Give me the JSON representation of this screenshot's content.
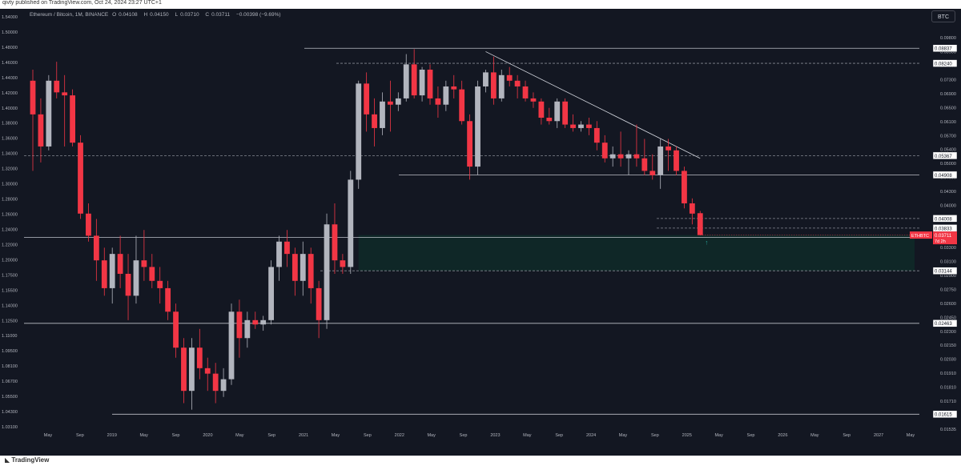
{
  "header": {
    "published": "qivty published on TradingView.com, Oct 24, 2024 23:27 UTC+1",
    "symbol": "Ethereum / Bitcoin, 1M, BINANCE",
    "open_label": "O",
    "open": "0.04108",
    "high_label": "H",
    "high": "0.04150",
    "low_label": "L",
    "low": "0.03710",
    "close_label": "C",
    "close": "0.03711",
    "change": "−0.00398 (−9.69%)",
    "currency_button": "BTC"
  },
  "footer": {
    "brand": "TradingView"
  },
  "colors": {
    "background": "#131722",
    "up": "#b2b5be",
    "down": "#f23645",
    "zone": "#0f2a28",
    "text": "#b2b5be"
  },
  "chart_data": {
    "type": "candlestick",
    "scale": "log",
    "ylim": [
      0.01535,
      0.1
    ],
    "y_ticks": [
      "0.09800",
      "0.08500",
      "0.07900",
      "0.07300",
      "0.06900",
      "0.06500",
      "0.06100",
      "0.05700",
      "0.05400",
      "0.05000",
      "0.04600",
      "0.04300",
      "0.04000",
      "0.03700",
      "0.03500",
      "0.03300",
      "0.03100",
      "0.02900",
      "0.02750",
      "0.02600",
      "0.02450",
      "0.02300",
      "0.02150",
      "0.02030",
      "0.01910",
      "0.01810",
      "0.01710",
      "0.01620",
      "0.01535"
    ],
    "x_ticks": [
      "May",
      "Sep",
      "2019",
      "May",
      "Sep",
      "2020",
      "May",
      "Sep",
      "2021",
      "May",
      "Sep",
      "2022",
      "May",
      "Sep",
      "2023",
      "May",
      "Sep",
      "2024",
      "May",
      "Sep",
      "2025",
      "May",
      "Sep",
      "2026",
      "May",
      "Sep",
      "2027",
      "May"
    ],
    "left_scale_ticks": [
      "1.54000",
      "1.50000",
      "1.48000",
      "1.46000",
      "1.44000",
      "1.42000",
      "1.40000",
      "1.38000",
      "1.36000",
      "1.34000",
      "1.32000",
      "1.30000",
      "1.28000",
      "1.26000",
      "1.24000",
      "1.22000",
      "1.20000",
      "1.17500",
      "1.15500",
      "1.14000",
      "1.12500",
      "1.11000",
      "1.09500",
      "1.08100",
      "1.06700",
      "1.05500",
      "1.04300",
      "1.03100"
    ],
    "candles": [
      {
        "o": 0.076,
        "h": 0.08,
        "l": 0.05,
        "c": 0.065
      },
      {
        "o": 0.065,
        "h": 0.07,
        "l": 0.052,
        "c": 0.056
      },
      {
        "o": 0.056,
        "h": 0.078,
        "l": 0.055,
        "c": 0.076
      },
      {
        "o": 0.076,
        "h": 0.083,
        "l": 0.07,
        "c": 0.072
      },
      {
        "o": 0.072,
        "h": 0.078,
        "l": 0.056,
        "c": 0.071
      },
      {
        "o": 0.071,
        "h": 0.073,
        "l": 0.056,
        "c": 0.057
      },
      {
        "o": 0.057,
        "h": 0.059,
        "l": 0.04,
        "c": 0.041
      },
      {
        "o": 0.041,
        "h": 0.043,
        "l": 0.036,
        "c": 0.037
      },
      {
        "o": 0.037,
        "h": 0.04,
        "l": 0.03,
        "c": 0.033
      },
      {
        "o": 0.033,
        "h": 0.035,
        "l": 0.028,
        "c": 0.029
      },
      {
        "o": 0.029,
        "h": 0.035,
        "l": 0.027,
        "c": 0.034
      },
      {
        "o": 0.034,
        "h": 0.037,
        "l": 0.029,
        "c": 0.031
      },
      {
        "o": 0.031,
        "h": 0.034,
        "l": 0.025,
        "c": 0.028
      },
      {
        "o": 0.028,
        "h": 0.037,
        "l": 0.027,
        "c": 0.033
      },
      {
        "o": 0.033,
        "h": 0.038,
        "l": 0.03,
        "c": 0.032
      },
      {
        "o": 0.032,
        "h": 0.034,
        "l": 0.029,
        "c": 0.03
      },
      {
        "o": 0.03,
        "h": 0.032,
        "l": 0.027,
        "c": 0.029
      },
      {
        "o": 0.029,
        "h": 0.03,
        "l": 0.025,
        "c": 0.026
      },
      {
        "o": 0.026,
        "h": 0.027,
        "l": 0.021,
        "c": 0.022
      },
      {
        "o": 0.022,
        "h": 0.023,
        "l": 0.017,
        "c": 0.018
      },
      {
        "o": 0.018,
        "h": 0.023,
        "l": 0.0165,
        "c": 0.022
      },
      {
        "o": 0.022,
        "h": 0.024,
        "l": 0.019,
        "c": 0.02
      },
      {
        "o": 0.02,
        "h": 0.021,
        "l": 0.018,
        "c": 0.0195
      },
      {
        "o": 0.0195,
        "h": 0.0205,
        "l": 0.017,
        "c": 0.018
      },
      {
        "o": 0.018,
        "h": 0.02,
        "l": 0.0175,
        "c": 0.019
      },
      {
        "o": 0.019,
        "h": 0.027,
        "l": 0.0185,
        "c": 0.026
      },
      {
        "o": 0.026,
        "h": 0.0275,
        "l": 0.021,
        "c": 0.023
      },
      {
        "o": 0.023,
        "h": 0.026,
        "l": 0.022,
        "c": 0.025
      },
      {
        "o": 0.025,
        "h": 0.026,
        "l": 0.024,
        "c": 0.0245
      },
      {
        "o": 0.0245,
        "h": 0.0255,
        "l": 0.0238,
        "c": 0.025
      },
      {
        "o": 0.025,
        "h": 0.033,
        "l": 0.0245,
        "c": 0.032
      },
      {
        "o": 0.032,
        "h": 0.037,
        "l": 0.03,
        "c": 0.036
      },
      {
        "o": 0.036,
        "h": 0.038,
        "l": 0.032,
        "c": 0.034
      },
      {
        "o": 0.034,
        "h": 0.035,
        "l": 0.028,
        "c": 0.03
      },
      {
        "o": 0.03,
        "h": 0.036,
        "l": 0.028,
        "c": 0.034
      },
      {
        "o": 0.034,
        "h": 0.035,
        "l": 0.027,
        "c": 0.029
      },
      {
        "o": 0.029,
        "h": 0.03,
        "l": 0.023,
        "c": 0.025
      },
      {
        "o": 0.025,
        "h": 0.041,
        "l": 0.024,
        "c": 0.039
      },
      {
        "o": 0.039,
        "h": 0.043,
        "l": 0.031,
        "c": 0.033
      },
      {
        "o": 0.033,
        "h": 0.034,
        "l": 0.031,
        "c": 0.032
      },
      {
        "o": 0.032,
        "h": 0.05,
        "l": 0.031,
        "c": 0.048
      },
      {
        "o": 0.048,
        "h": 0.076,
        "l": 0.046,
        "c": 0.075
      },
      {
        "o": 0.075,
        "h": 0.079,
        "l": 0.06,
        "c": 0.065
      },
      {
        "o": 0.065,
        "h": 0.07,
        "l": 0.056,
        "c": 0.061
      },
      {
        "o": 0.061,
        "h": 0.072,
        "l": 0.059,
        "c": 0.069
      },
      {
        "o": 0.069,
        "h": 0.076,
        "l": 0.06,
        "c": 0.068
      },
      {
        "o": 0.068,
        "h": 0.072,
        "l": 0.066,
        "c": 0.07
      },
      {
        "o": 0.07,
        "h": 0.086,
        "l": 0.069,
        "c": 0.082
      },
      {
        "o": 0.082,
        "h": 0.088,
        "l": 0.07,
        "c": 0.071
      },
      {
        "o": 0.071,
        "h": 0.081,
        "l": 0.069,
        "c": 0.08
      },
      {
        "o": 0.08,
        "h": 0.082,
        "l": 0.068,
        "c": 0.07
      },
      {
        "o": 0.07,
        "h": 0.074,
        "l": 0.064,
        "c": 0.068
      },
      {
        "o": 0.068,
        "h": 0.076,
        "l": 0.066,
        "c": 0.074
      },
      {
        "o": 0.074,
        "h": 0.078,
        "l": 0.07,
        "c": 0.073
      },
      {
        "o": 0.073,
        "h": 0.076,
        "l": 0.062,
        "c": 0.063
      },
      {
        "o": 0.063,
        "h": 0.065,
        "l": 0.048,
        "c": 0.051
      },
      {
        "o": 0.051,
        "h": 0.076,
        "l": 0.049,
        "c": 0.074
      },
      {
        "o": 0.074,
        "h": 0.08,
        "l": 0.072,
        "c": 0.079
      },
      {
        "o": 0.079,
        "h": 0.085,
        "l": 0.068,
        "c": 0.07
      },
      {
        "o": 0.07,
        "h": 0.08,
        "l": 0.069,
        "c": 0.078
      },
      {
        "o": 0.078,
        "h": 0.081,
        "l": 0.074,
        "c": 0.076
      },
      {
        "o": 0.076,
        "h": 0.078,
        "l": 0.07,
        "c": 0.074
      },
      {
        "o": 0.074,
        "h": 0.076,
        "l": 0.069,
        "c": 0.07
      },
      {
        "o": 0.07,
        "h": 0.072,
        "l": 0.067,
        "c": 0.069
      },
      {
        "o": 0.069,
        "h": 0.07,
        "l": 0.062,
        "c": 0.064
      },
      {
        "o": 0.064,
        "h": 0.067,
        "l": 0.062,
        "c": 0.063
      },
      {
        "o": 0.063,
        "h": 0.07,
        "l": 0.061,
        "c": 0.069
      },
      {
        "o": 0.069,
        "h": 0.07,
        "l": 0.061,
        "c": 0.062
      },
      {
        "o": 0.062,
        "h": 0.065,
        "l": 0.06,
        "c": 0.061
      },
      {
        "o": 0.061,
        "h": 0.063,
        "l": 0.06,
        "c": 0.062
      },
      {
        "o": 0.062,
        "h": 0.064,
        "l": 0.059,
        "c": 0.061
      },
      {
        "o": 0.061,
        "h": 0.063,
        "l": 0.055,
        "c": 0.057
      },
      {
        "o": 0.057,
        "h": 0.059,
        "l": 0.052,
        "c": 0.053
      },
      {
        "o": 0.053,
        "h": 0.056,
        "l": 0.051,
        "c": 0.054
      },
      {
        "o": 0.054,
        "h": 0.06,
        "l": 0.051,
        "c": 0.053
      },
      {
        "o": 0.053,
        "h": 0.055,
        "l": 0.049,
        "c": 0.054
      },
      {
        "o": 0.054,
        "h": 0.062,
        "l": 0.051,
        "c": 0.053
      },
      {
        "o": 0.053,
        "h": 0.058,
        "l": 0.049,
        "c": 0.05
      },
      {
        "o": 0.05,
        "h": 0.054,
        "l": 0.048,
        "c": 0.049
      },
      {
        "o": 0.049,
        "h": 0.058,
        "l": 0.046,
        "c": 0.056
      },
      {
        "o": 0.056,
        "h": 0.058,
        "l": 0.05,
        "c": 0.055
      },
      {
        "o": 0.055,
        "h": 0.056,
        "l": 0.049,
        "c": 0.05
      },
      {
        "o": 0.05,
        "h": 0.051,
        "l": 0.042,
        "c": 0.043
      },
      {
        "o": 0.043,
        "h": 0.044,
        "l": 0.039,
        "c": 0.041
      },
      {
        "o": 0.04108,
        "h": 0.0415,
        "l": 0.0371,
        "c": 0.03711
      }
    ],
    "horizontal_levels": [
      {
        "price": 0.08837,
        "label": "0.08837",
        "style": "solid"
      },
      {
        "price": 0.0824,
        "label": "0.08240",
        "style": "dashed"
      },
      {
        "price": 0.05367,
        "label": "0.05367",
        "style": "dashed"
      },
      {
        "price": 0.04908,
        "label": "0.04908",
        "style": "solid"
      },
      {
        "price": 0.04008,
        "label": "0.04008",
        "style": "dashed"
      },
      {
        "price": 0.03833,
        "label": "0.03833",
        "style": "dashed"
      },
      {
        "price": 0.03671,
        "label": "0.03671",
        "style": "solid"
      },
      {
        "price": 0.03144,
        "label": "0.03144",
        "style": "dashed"
      },
      {
        "price": 0.02463,
        "label": "0.02463",
        "style": "solid"
      },
      {
        "price": 0.01615,
        "label": "0.01615",
        "style": "solid"
      }
    ],
    "current_price": {
      "symbol": "ETHBTC",
      "price": "0.03711",
      "countdown": "7d 2h"
    },
    "trendline": {
      "from_index": 57,
      "from_price": 0.087,
      "to_index": 84,
      "to_price": 0.053
    },
    "demand_zone": {
      "from_index": 41,
      "to_index": 111,
      "top": 0.03711,
      "bottom": 0.03144
    }
  }
}
